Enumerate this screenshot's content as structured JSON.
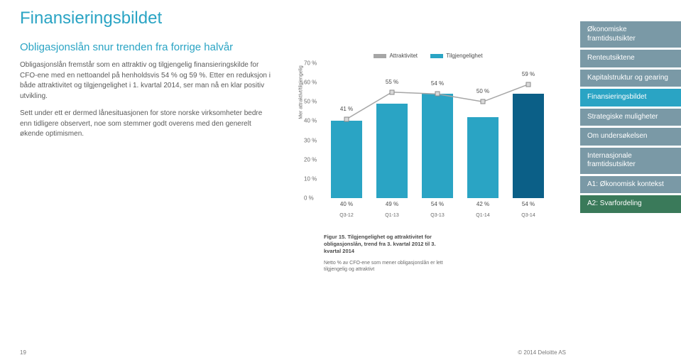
{
  "page": {
    "title": "Finansieringsbildet",
    "subtitle": "Obligasjonslån snur trenden fra forrige halvår",
    "para1": "Obligasjonslån fremstår som en attraktiv og tilgjengelig finansieringskilde for CFO-ene med en nettoandel på henholdsvis 54 % og 59 %. Etter en reduksjon i både attraktivitet og tilgjengelighet i 1. kvartal 2014, ser man nå en klar positiv utvikling.",
    "para2": "Sett under ett er dermed lånesituasjonen for store norske virksomheter bedre enn tidligere observert, noe som stemmer godt overens med den generelt økende optimismen.",
    "page_num": "19",
    "copyright": "© 2014 Deloitte AS"
  },
  "chart": {
    "legend_a": "Attraktivitet",
    "legend_b": "Tilgjengelighet",
    "ylabel": "Mer attraktivt/tilgjengelig",
    "yticks": [
      "0 %",
      "10 %",
      "20 %",
      "30 %",
      "40 %",
      "50 %",
      "60 %",
      "70 %"
    ],
    "ymax": 70,
    "categories": [
      "Q3-12",
      "Q1-13",
      "Q3-13",
      "Q1-14",
      "Q3-14"
    ],
    "bars": {
      "values": [
        40,
        49,
        54,
        42,
        54
      ],
      "labels": [
        "40 %",
        "49 %",
        "54 %",
        "42 %",
        "54 %"
      ],
      "color": "#2aa4c4"
    },
    "line": {
      "values": [
        41,
        55,
        54,
        50,
        59
      ],
      "labels": [
        "41 %",
        "55 %",
        "54 %",
        "50 %",
        "59 %"
      ],
      "color": "#a6a6a6",
      "marker_fill": "#d9d9d9",
      "marker_stroke": "#8a8a8a"
    },
    "highlight_bar_index": 4,
    "highlight_color": "#0b5f87",
    "caption": "Figur 15. Tilgjengelighet og attraktivitet for obligasjonslån, trend fra 3. kvartal 2012 til 3. kvartal 2014",
    "note": "Netto % av CFO-ene som mener obligasjonslån er lett tilgjengelig og attraktivt"
  },
  "sidebar": {
    "items": [
      {
        "label": "Økonomiske framtidsutsikter",
        "color": "#7a99a6"
      },
      {
        "label": "Renteutsiktene",
        "color": "#7a99a6"
      },
      {
        "label": "Kapitalstruktur og gearing",
        "color": "#7a99a6"
      },
      {
        "label": "Finansieringsbildet",
        "color": "#2aa4c4"
      },
      {
        "label": "Strategiske muligheter",
        "color": "#7a99a6"
      },
      {
        "label": "Om undersøkelsen",
        "color": "#7a99a6"
      },
      {
        "label": "Internasjonale framtidsutsikter",
        "color": "#7a99a6"
      },
      {
        "label": "A1: Økonomisk kontekst",
        "color": "#7a99a6"
      },
      {
        "label": "A2: Svarfordeling",
        "color": "#3a7a5a"
      }
    ]
  }
}
